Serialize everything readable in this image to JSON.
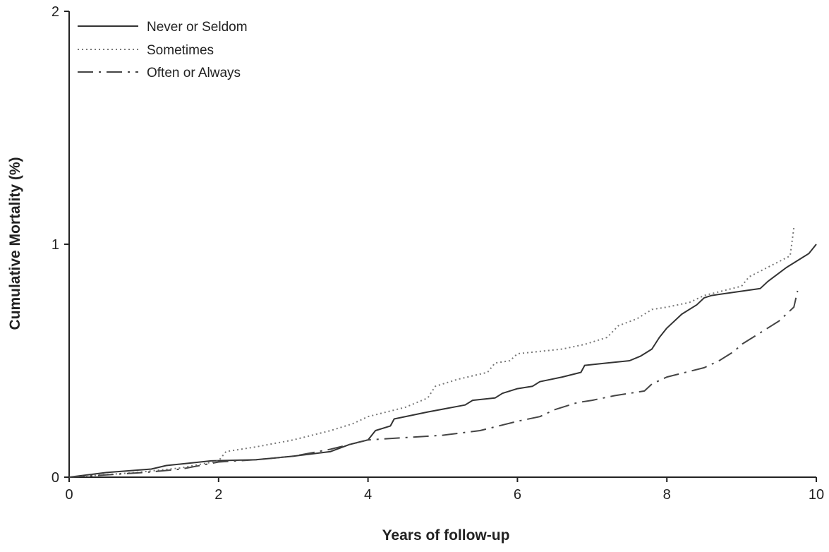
{
  "chart_data": {
    "type": "line",
    "title": "",
    "xlabel": "Years of follow-up",
    "ylabel": "Cumulative Mortality (%)",
    "xlim": [
      0,
      10
    ],
    "ylim": [
      0,
      2
    ],
    "xticks": [
      0,
      2,
      4,
      6,
      8,
      10
    ],
    "yticks": [
      0,
      1,
      2
    ],
    "grid": false,
    "legend_position": "top-left",
    "series": [
      {
        "name": "Never or Seldom",
        "style": "solid",
        "color": "#333333",
        "points": [
          [
            0,
            0
          ],
          [
            0.5,
            0.02
          ],
          [
            1.1,
            0.035
          ],
          [
            1.3,
            0.05
          ],
          [
            1.9,
            0.07
          ],
          [
            2.5,
            0.075
          ],
          [
            3.0,
            0.09
          ],
          [
            3.5,
            0.11
          ],
          [
            3.75,
            0.14
          ],
          [
            4.0,
            0.16
          ],
          [
            4.1,
            0.2
          ],
          [
            4.3,
            0.22
          ],
          [
            4.35,
            0.25
          ],
          [
            4.8,
            0.28
          ],
          [
            5.3,
            0.31
          ],
          [
            5.4,
            0.33
          ],
          [
            5.7,
            0.34
          ],
          [
            5.8,
            0.36
          ],
          [
            6.0,
            0.38
          ],
          [
            6.2,
            0.39
          ],
          [
            6.3,
            0.41
          ],
          [
            6.6,
            0.43
          ],
          [
            6.85,
            0.45
          ],
          [
            6.9,
            0.48
          ],
          [
            7.2,
            0.49
          ],
          [
            7.5,
            0.5
          ],
          [
            7.65,
            0.52
          ],
          [
            7.7,
            0.53
          ],
          [
            7.8,
            0.55
          ],
          [
            7.9,
            0.6
          ],
          [
            8.0,
            0.64
          ],
          [
            8.2,
            0.7
          ],
          [
            8.4,
            0.74
          ],
          [
            8.5,
            0.77
          ],
          [
            8.6,
            0.78
          ],
          [
            9.25,
            0.81
          ],
          [
            9.35,
            0.84
          ],
          [
            9.6,
            0.9
          ],
          [
            9.9,
            0.96
          ],
          [
            10.0,
            1.0
          ]
        ]
      },
      {
        "name": "Sometimes",
        "style": "dotted",
        "color": "#777777",
        "points": [
          [
            0,
            0
          ],
          [
            0.9,
            0.02
          ],
          [
            1.5,
            0.04
          ],
          [
            2.0,
            0.07
          ],
          [
            2.1,
            0.11
          ],
          [
            2.5,
            0.13
          ],
          [
            3.0,
            0.16
          ],
          [
            3.5,
            0.2
          ],
          [
            3.8,
            0.23
          ],
          [
            4.0,
            0.26
          ],
          [
            4.5,
            0.3
          ],
          [
            4.8,
            0.34
          ],
          [
            4.9,
            0.39
          ],
          [
            5.2,
            0.42
          ],
          [
            5.6,
            0.45
          ],
          [
            5.7,
            0.49
          ],
          [
            5.9,
            0.5
          ],
          [
            6.0,
            0.53
          ],
          [
            6.6,
            0.55
          ],
          [
            6.9,
            0.57
          ],
          [
            7.2,
            0.6
          ],
          [
            7.35,
            0.65
          ],
          [
            7.6,
            0.68
          ],
          [
            7.8,
            0.72
          ],
          [
            8.0,
            0.73
          ],
          [
            8.3,
            0.75
          ],
          [
            8.5,
            0.78
          ],
          [
            9.0,
            0.82
          ],
          [
            9.1,
            0.86
          ],
          [
            9.65,
            0.95
          ],
          [
            9.7,
            1.07
          ]
        ]
      },
      {
        "name": "Often or Always",
        "style": "dashdot",
        "color": "#444444",
        "points": [
          [
            0,
            0
          ],
          [
            0.5,
            0.01
          ],
          [
            1.0,
            0.02
          ],
          [
            1.5,
            0.035
          ],
          [
            2.0,
            0.065
          ],
          [
            2.5,
            0.075
          ],
          [
            3.0,
            0.09
          ],
          [
            3.5,
            0.12
          ],
          [
            4.0,
            0.16
          ],
          [
            4.5,
            0.17
          ],
          [
            5.0,
            0.18
          ],
          [
            5.5,
            0.2
          ],
          [
            6.0,
            0.24
          ],
          [
            6.3,
            0.26
          ],
          [
            6.5,
            0.29
          ],
          [
            6.8,
            0.32
          ],
          [
            7.0,
            0.33
          ],
          [
            7.3,
            0.35
          ],
          [
            7.7,
            0.37
          ],
          [
            7.8,
            0.4
          ],
          [
            8.0,
            0.43
          ],
          [
            8.5,
            0.47
          ],
          [
            8.7,
            0.5
          ],
          [
            8.8,
            0.52
          ],
          [
            8.9,
            0.54
          ],
          [
            9.0,
            0.57
          ],
          [
            9.3,
            0.63
          ],
          [
            9.5,
            0.67
          ],
          [
            9.7,
            0.73
          ],
          [
            9.75,
            0.8
          ]
        ]
      }
    ]
  }
}
